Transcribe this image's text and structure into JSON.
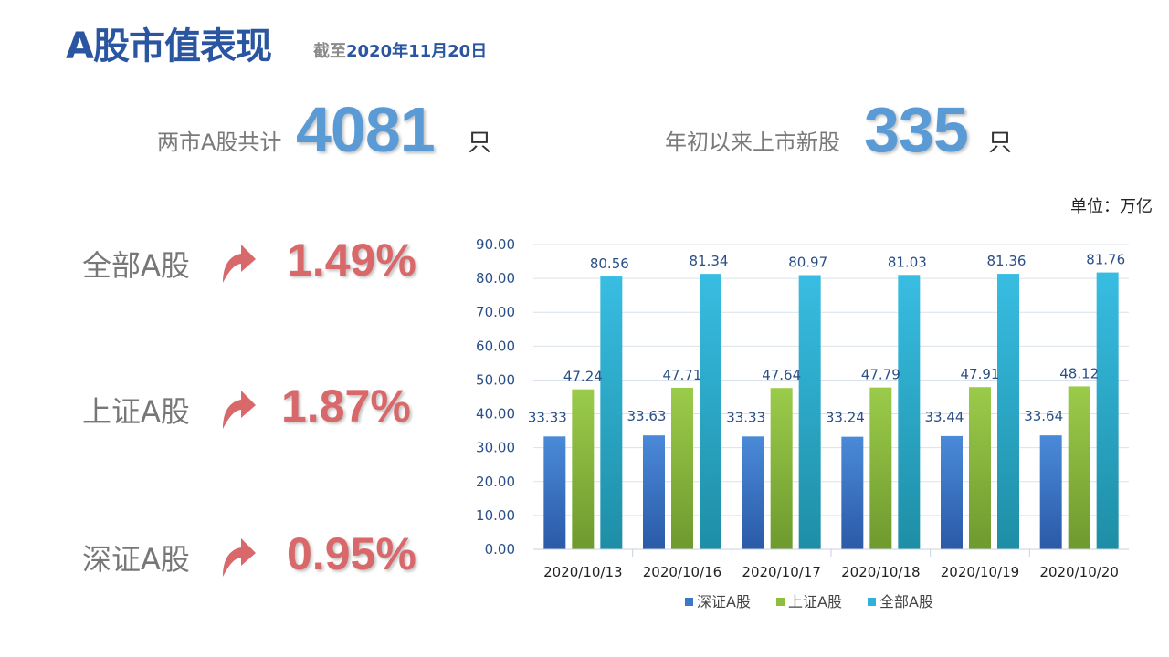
{
  "header": {
    "title": "A股市值表现",
    "subtitle_prefix": "截至",
    "subtitle_date": "2020年11月20日"
  },
  "stats": {
    "total_label": "两市A股共计",
    "total_value": "4081",
    "total_unit": "只",
    "new_label": "年初以来上市新股",
    "new_value": "335",
    "new_unit": "只"
  },
  "unit_label": "单位：万亿",
  "changes": [
    {
      "label": "全部A股",
      "value": "1.49%"
    },
    {
      "label": "上证A股",
      "value": "1.87%"
    },
    {
      "label": "深证A股",
      "value": "0.95%"
    }
  ],
  "colors": {
    "accent": "#2a55a0",
    "arrow": "#d9686b",
    "series_shenzhen": "#3a78c8",
    "series_shanghai": "#8cbf3f",
    "series_all": "#2fb0d8"
  },
  "chart_data": {
    "type": "bar",
    "categories": [
      "2020/10/13",
      "2020/10/16",
      "2020/10/17",
      "2020/10/18",
      "2020/10/19",
      "2020/10/20"
    ],
    "series": [
      {
        "name": "深证A股",
        "values": [
          33.33,
          33.63,
          33.33,
          33.24,
          33.44,
          33.64
        ]
      },
      {
        "name": "上证A股",
        "values": [
          47.24,
          47.71,
          47.64,
          47.79,
          47.91,
          48.12
        ]
      },
      {
        "name": "全部A股",
        "values": [
          80.56,
          81.34,
          80.97,
          81.03,
          81.36,
          81.76
        ]
      }
    ],
    "ylim": [
      0,
      90
    ],
    "yticks": [
      "0.00",
      "10.00",
      "20.00",
      "30.00",
      "40.00",
      "50.00",
      "60.00",
      "70.00",
      "80.00",
      "90.00"
    ],
    "grid": true,
    "legend": "bottom"
  }
}
